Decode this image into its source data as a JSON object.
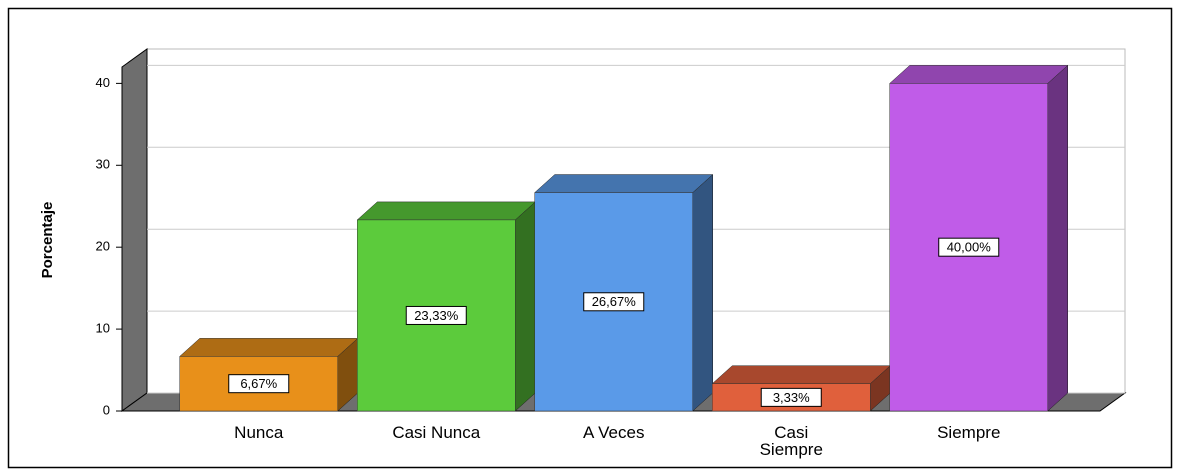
{
  "chart_data": {
    "type": "bar3d",
    "y_label": "Porcentaje",
    "categories": [
      "Nunca",
      "Casi Nunca",
      "A Veces",
      "Casi Siempre",
      "Siempre"
    ],
    "values": [
      6.67,
      23.33,
      26.67,
      3.33,
      40
    ],
    "value_labels": [
      "6,67%",
      "23,33%",
      "26,67%",
      "3,33%",
      "40,00%"
    ],
    "colors": [
      "#e8901a",
      "#5ccb3c",
      "#5a9ae8",
      "#e0603c",
      "#c05ce8"
    ],
    "ylim": [
      0,
      42
    ],
    "yticks": [
      0,
      10,
      20,
      30,
      40
    ],
    "grid": true
  }
}
